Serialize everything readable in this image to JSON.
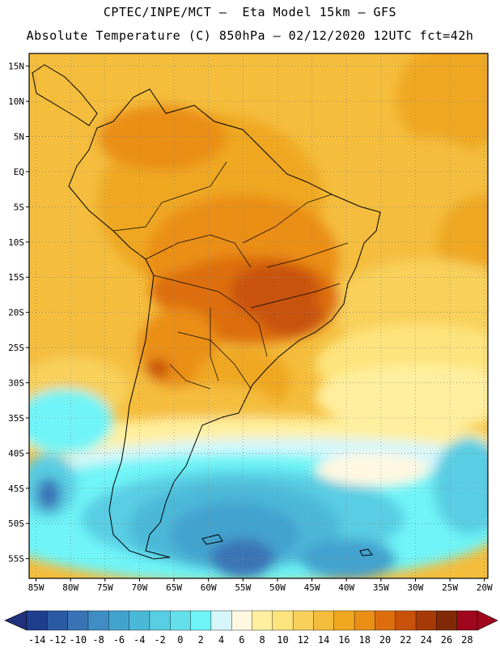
{
  "header": {
    "line1": "CPTEC/INPE/MCT –  Eta Model 15km – GFS",
    "line2": "Absolute Temperature (C) 850hPa – 02/12/2020 12UTC fct=42h"
  },
  "axes": {
    "lat_labels": [
      "15N",
      "10N",
      "5N",
      "EQ",
      "5S",
      "10S",
      "15S",
      "20S",
      "25S",
      "30S",
      "35S",
      "40S",
      "45S",
      "50S",
      "55S"
    ],
    "lat_values": [
      15,
      10,
      5,
      0,
      -5,
      -10,
      -15,
      -20,
      -25,
      -30,
      -35,
      -40,
      -45,
      -50,
      -55
    ],
    "lon_labels": [
      "85W",
      "80W",
      "75W",
      "70W",
      "65W",
      "60W",
      "55W",
      "50W",
      "45W",
      "40W",
      "35W",
      "30W",
      "25W",
      "20W"
    ],
    "lon_values": [
      -85,
      -80,
      -75,
      -70,
      -65,
      -60,
      -55,
      -50,
      -45,
      -40,
      -35,
      -30,
      -25,
      -20
    ],
    "lon_range": [
      -86,
      -19.5
    ],
    "lat_range": [
      -57.8,
      16.8
    ]
  },
  "colorbar": {
    "labels": [
      "-14",
      "-12",
      "-10",
      "-8",
      "-6",
      "-4",
      "-2",
      "0",
      "2",
      "4",
      "6",
      "8",
      "10",
      "12",
      "14",
      "16",
      "18",
      "20",
      "22",
      "24",
      "26",
      "28"
    ],
    "colors": [
      "#1f3f8e",
      "#2a5aa3",
      "#3a74b6",
      "#3f8dc4",
      "#43a3cf",
      "#4cb8d8",
      "#58cde3",
      "#64e0ec",
      "#6ff4f7",
      "#d6f6fa",
      "#fff8e1",
      "#ffef9e",
      "#fde47c",
      "#f8d05a",
      "#f4bd3c",
      "#efa720",
      "#ea8e16",
      "#dd6e0e",
      "#c8520a",
      "#a63a06",
      "#822a06",
      "#a0061e"
    ],
    "under_color": "#20307a",
    "over_color": "#a0061e"
  }
}
